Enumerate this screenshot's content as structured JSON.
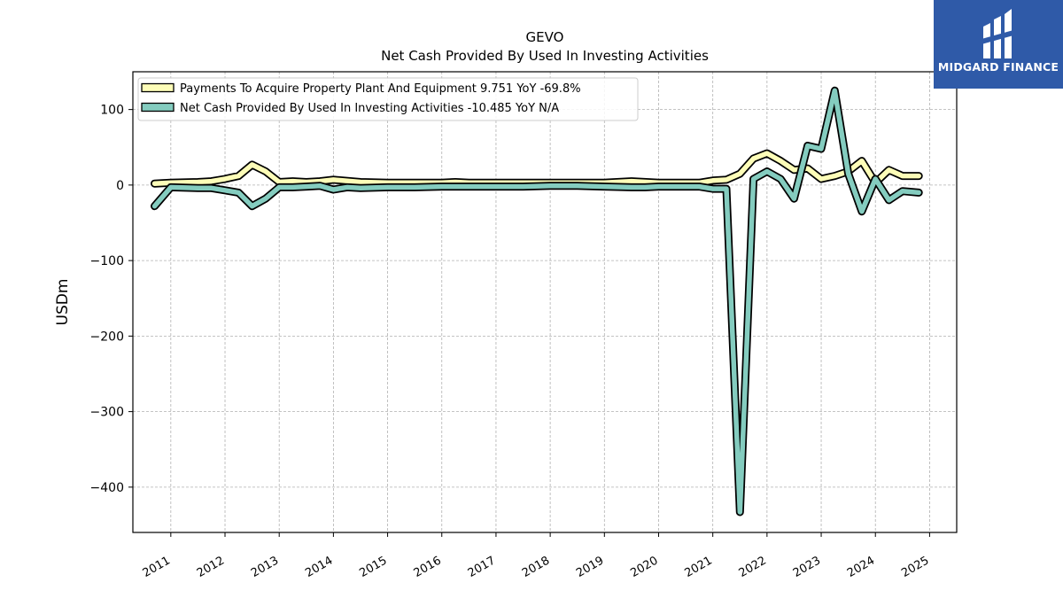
{
  "logo": {
    "text": "MIDGARD FINANCE",
    "bg_color": "#2f5aa8"
  },
  "chart_data": {
    "type": "line",
    "title": "GEVO",
    "subtitle": "Net Cash Provided By Used In Investing Activities",
    "xlabel": "",
    "ylabel": "USDm",
    "xlim": [
      2010.3,
      2025.5
    ],
    "ylim": [
      -460,
      150
    ],
    "yticks": [
      100,
      0,
      -100,
      -200,
      -300,
      -400
    ],
    "ytick_labels": [
      "100",
      "0",
      "−100",
      "−200",
      "−300",
      "−400"
    ],
    "xticks": [
      2011,
      2012,
      2013,
      2014,
      2015,
      2016,
      2017,
      2018,
      2019,
      2020,
      2021,
      2022,
      2023,
      2024,
      2025
    ],
    "xtick_labels": [
      "2011",
      "2012",
      "2013",
      "2014",
      "2015",
      "2016",
      "2017",
      "2018",
      "2019",
      "2020",
      "2021",
      "2022",
      "2023",
      "2024",
      "2025"
    ],
    "grid": true,
    "legend_position": "top-left",
    "series": [
      {
        "name": "Payments To Acquire Property Plant And Equipment  9.751 YoY -69.8%",
        "color": "#fdfdb8",
        "points": [
          [
            2010.7,
            2
          ],
          [
            2011.0,
            3
          ],
          [
            2011.5,
            4
          ],
          [
            2011.75,
            5
          ],
          [
            2012.0,
            8
          ],
          [
            2012.25,
            12
          ],
          [
            2012.5,
            27
          ],
          [
            2012.75,
            18
          ],
          [
            2013.0,
            4
          ],
          [
            2013.25,
            5
          ],
          [
            2013.5,
            4
          ],
          [
            2013.75,
            5
          ],
          [
            2014.0,
            7
          ],
          [
            2014.5,
            4
          ],
          [
            2015.0,
            3
          ],
          [
            2015.5,
            3
          ],
          [
            2016.0,
            3
          ],
          [
            2016.25,
            4
          ],
          [
            2016.5,
            3
          ],
          [
            2017.0,
            3
          ],
          [
            2017.5,
            3
          ],
          [
            2018.0,
            3
          ],
          [
            2018.5,
            3
          ],
          [
            2019.0,
            3
          ],
          [
            2019.5,
            5
          ],
          [
            2020.0,
            3
          ],
          [
            2020.5,
            3
          ],
          [
            2020.75,
            3
          ],
          [
            2021.0,
            6
          ],
          [
            2021.25,
            7
          ],
          [
            2021.5,
            15
          ],
          [
            2021.75,
            35
          ],
          [
            2022.0,
            42
          ],
          [
            2022.25,
            32
          ],
          [
            2022.5,
            20
          ],
          [
            2022.75,
            22
          ],
          [
            2023.0,
            8
          ],
          [
            2023.25,
            12
          ],
          [
            2023.5,
            18
          ],
          [
            2023.75,
            32
          ],
          [
            2024.0,
            3
          ],
          [
            2024.25,
            20
          ],
          [
            2024.5,
            12
          ],
          [
            2024.8,
            12
          ]
        ]
      },
      {
        "name": "Net Cash Provided By Used In Investing Activities  -10.485 YoY N/A",
        "color": "#84ccbf",
        "points": [
          [
            2010.7,
            -28
          ],
          [
            2011.0,
            -3
          ],
          [
            2011.5,
            -4
          ],
          [
            2011.75,
            -4
          ],
          [
            2012.0,
            -7
          ],
          [
            2012.25,
            -10
          ],
          [
            2012.5,
            -28
          ],
          [
            2012.75,
            -18
          ],
          [
            2013.0,
            -3
          ],
          [
            2013.25,
            -3
          ],
          [
            2013.5,
            -2
          ],
          [
            2013.75,
            -1
          ],
          [
            2014.0,
            -6
          ],
          [
            2014.25,
            -3
          ],
          [
            2014.5,
            -4
          ],
          [
            2015.0,
            -3
          ],
          [
            2015.5,
            -3
          ],
          [
            2016.0,
            -2
          ],
          [
            2016.5,
            -2
          ],
          [
            2017.0,
            -2
          ],
          [
            2017.5,
            -2
          ],
          [
            2018.0,
            -1
          ],
          [
            2018.5,
            -1
          ],
          [
            2019.0,
            -2
          ],
          [
            2019.5,
            -3
          ],
          [
            2019.75,
            -3
          ],
          [
            2020.0,
            -2
          ],
          [
            2020.5,
            -2
          ],
          [
            2020.75,
            -2
          ],
          [
            2021.0,
            -5
          ],
          [
            2021.25,
            -5
          ],
          [
            2021.5,
            -433
          ],
          [
            2021.75,
            8
          ],
          [
            2022.0,
            18
          ],
          [
            2022.25,
            8
          ],
          [
            2022.5,
            -18
          ],
          [
            2022.75,
            52
          ],
          [
            2023.0,
            48
          ],
          [
            2023.25,
            125
          ],
          [
            2023.5,
            15
          ],
          [
            2023.75,
            -35
          ],
          [
            2024.0,
            8
          ],
          [
            2024.25,
            -20
          ],
          [
            2024.5,
            -8
          ],
          [
            2024.8,
            -10
          ]
        ]
      }
    ]
  }
}
